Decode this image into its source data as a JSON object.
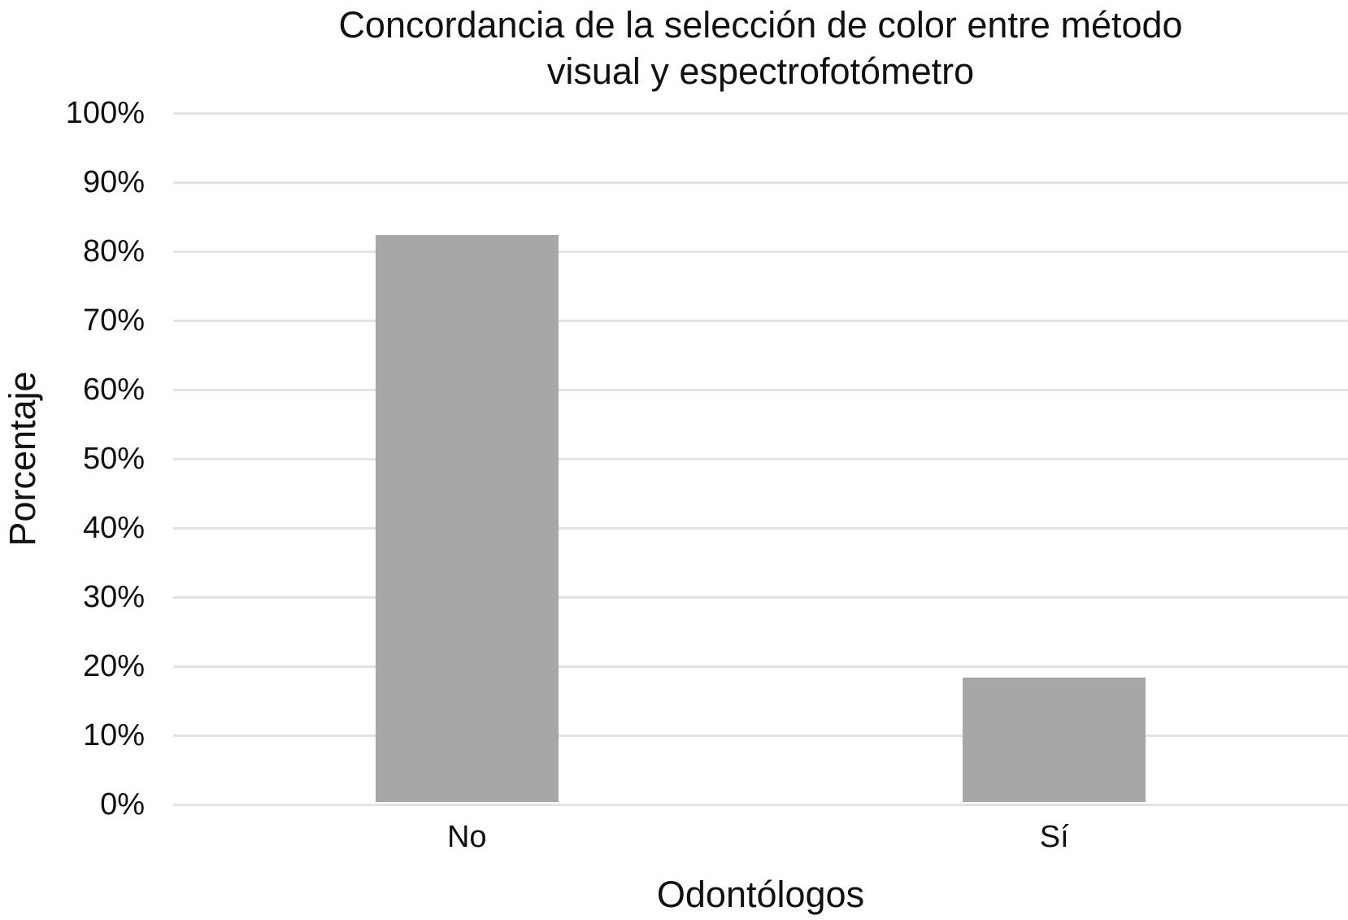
{
  "chart_data": {
    "type": "bar",
    "title": "Concordancia de la selección de color entre método visual y espectrofotómetro",
    "title_lines": [
      "Concordancia de la selección de color entre método",
      "visual y espectrofotómetro"
    ],
    "xlabel": "Odontólogos",
    "ylabel": "Porcentaje",
    "categories": [
      "No",
      "Sí"
    ],
    "values": [
      82,
      18
    ],
    "ylim": [
      0,
      100
    ],
    "yticks": [
      {
        "value": 0,
        "label": "0%"
      },
      {
        "value": 10,
        "label": "10%"
      },
      {
        "value": 20,
        "label": "20%"
      },
      {
        "value": 30,
        "label": "30%"
      },
      {
        "value": 40,
        "label": "40%"
      },
      {
        "value": 50,
        "label": "50%"
      },
      {
        "value": 60,
        "label": "60%"
      },
      {
        "value": 70,
        "label": "70%"
      },
      {
        "value": 80,
        "label": "80%"
      },
      {
        "value": 90,
        "label": "90%"
      },
      {
        "value": 100,
        "label": "100%"
      }
    ],
    "grid": true,
    "legend": false,
    "colors": {
      "bar": "#a7a7a7",
      "gridline": "#e3e3e3",
      "text": "#111111",
      "background": "#ffffff"
    }
  }
}
